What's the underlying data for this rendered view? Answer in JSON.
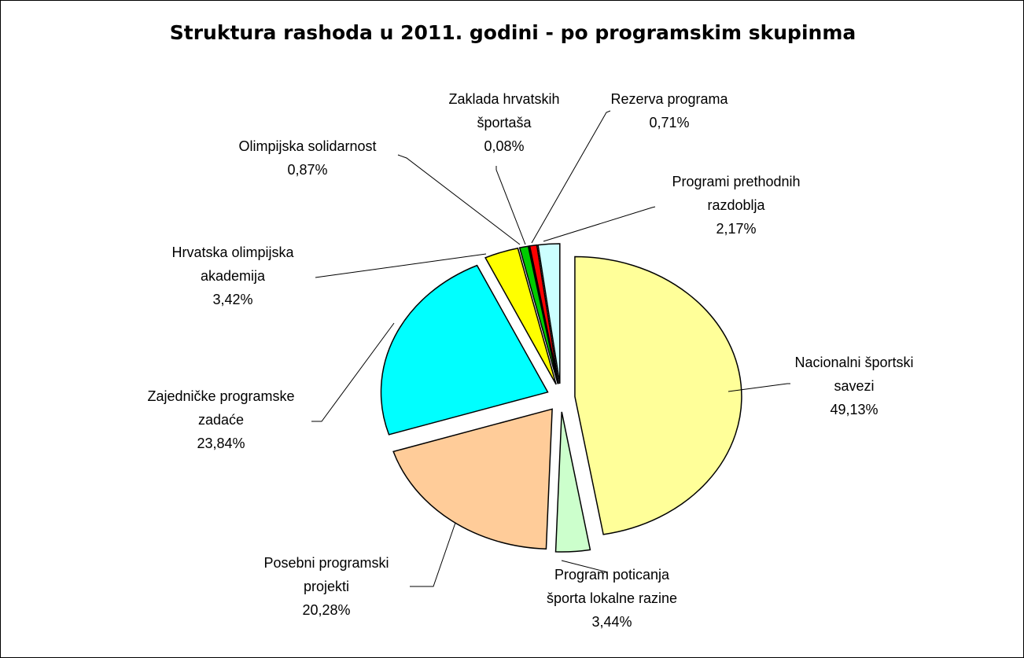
{
  "chart_data": {
    "type": "pie",
    "title": "Struktura rashoda u 2011. godini - po programskim skupinma",
    "categories": [
      "Nacionalni športski savezi",
      "Program poticanja športa lokalne razine",
      "Posebni programski projekti",
      "Zajedničke programske zadaće",
      "Hrvatska olimpijska akademija",
      "Olimpijska solidarnost",
      "Zaklada hrvatskih športaša",
      "Rezerva programa",
      "Programi prethodnih razdoblja"
    ],
    "values": [
      49.13,
      3.44,
      20.28,
      23.84,
      3.42,
      0.87,
      0.08,
      0.71,
      2.17
    ],
    "value_labels": [
      "49,13%",
      "3,44%",
      "20,28%",
      "23,84%",
      "3,42%",
      "0,87%",
      "0,08%",
      "0,71%",
      "2,17%"
    ],
    "colors": [
      "#FFFF99",
      "#CCFFCC",
      "#FFCC99",
      "#00FFFF",
      "#FFFF00",
      "#00CC00",
      "#3333CC",
      "#FF0000",
      "#CCFFFF"
    ]
  }
}
